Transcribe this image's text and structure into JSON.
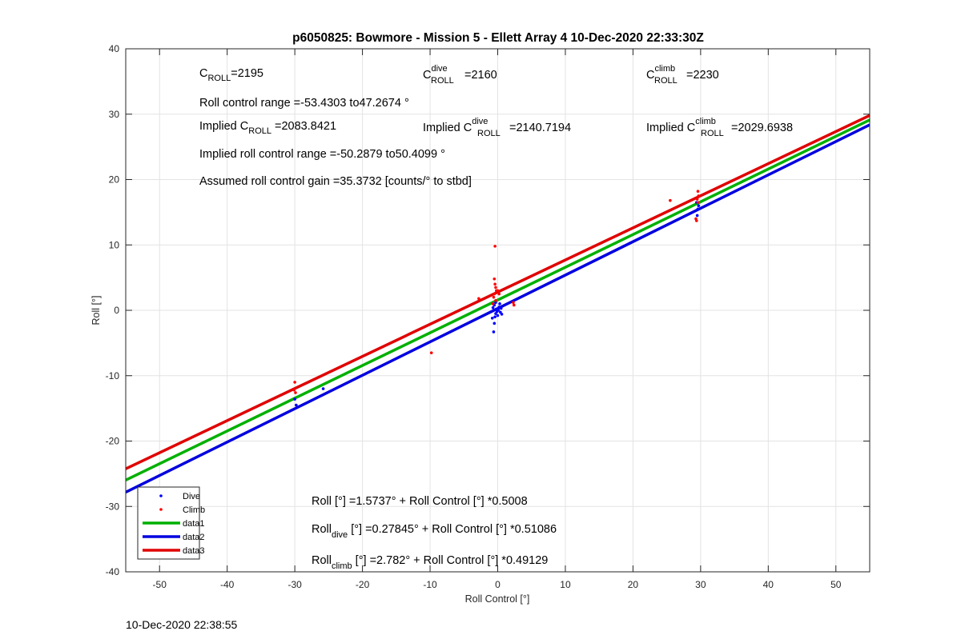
{
  "chart_data": {
    "type": "scatter",
    "title": "p6050825: Bowmore - Mission 5 - Ellett Array 4 10-Dec-2020 22:33:30Z",
    "xlabel": "Roll Control [°]",
    "ylabel": "Roll [°]",
    "xlim": [
      -55,
      55
    ],
    "ylim": [
      -40,
      40
    ],
    "xticks": [
      -50,
      -40,
      -30,
      -20,
      -10,
      0,
      10,
      20,
      30,
      40,
      50
    ],
    "yticks": [
      -40,
      -30,
      -20,
      -10,
      0,
      10,
      20,
      30,
      40
    ],
    "grid": true,
    "legend_placement": "bottom-left",
    "series": [
      {
        "name": "Dive",
        "kind": "points",
        "color": "#0000ff",
        "points": [
          [
            -30,
            -13.6
          ],
          [
            -29.8,
            -14.5
          ],
          [
            -25.8,
            -12.0
          ],
          [
            -0.6,
            -3.3
          ],
          [
            -0.5,
            -2.0
          ],
          [
            -0.4,
            -1.0
          ],
          [
            -0.3,
            -0.5
          ],
          [
            -0.2,
            0.2
          ],
          [
            -0.5,
            0.8
          ],
          [
            -0.3,
            1.2
          ],
          [
            0.0,
            -0.8
          ],
          [
            0.2,
            0.5
          ],
          [
            0.4,
            -0.3
          ],
          [
            0.1,
            0.0
          ],
          [
            -0.7,
            0.4
          ],
          [
            0.3,
            1.0
          ],
          [
            -0.1,
            -0.2
          ],
          [
            0.5,
            0.3
          ],
          [
            0.6,
            -0.6
          ],
          [
            -0.8,
            -1.2
          ],
          [
            29.5,
            14.5
          ],
          [
            29.6,
            15.5
          ],
          [
            29.7,
            16.0
          ],
          [
            29.4,
            16.5
          ]
        ]
      },
      {
        "name": "Climb",
        "kind": "points",
        "color": "#ff0000",
        "points": [
          [
            -30,
            -11.0
          ],
          [
            -30.1,
            -12.2
          ],
          [
            -29.9,
            -12.6
          ],
          [
            -9.8,
            -6.5
          ],
          [
            -0.4,
            9.8
          ],
          [
            -0.5,
            4.8
          ],
          [
            -0.4,
            4.0
          ],
          [
            -0.3,
            3.5
          ],
          [
            -0.2,
            3.0
          ],
          [
            -0.5,
            2.5
          ],
          [
            -0.6,
            2.0
          ],
          [
            -0.3,
            1.5
          ],
          [
            0.0,
            3.0
          ],
          [
            -0.7,
            1.0
          ],
          [
            0.2,
            2.5
          ],
          [
            -2.8,
            1.8
          ],
          [
            2.3,
            1.2
          ],
          [
            2.4,
            0.8
          ],
          [
            25.5,
            16.8
          ],
          [
            29.3,
            14.0
          ],
          [
            29.4,
            13.7
          ],
          [
            29.6,
            16.5
          ],
          [
            29.5,
            17.0
          ],
          [
            29.7,
            17.5
          ],
          [
            29.6,
            18.2
          ]
        ]
      },
      {
        "name": "data1",
        "kind": "line",
        "color": "#00b000",
        "intercept": 1.5737,
        "slope": 0.5008
      },
      {
        "name": "data2",
        "kind": "line",
        "color": "#0000e0",
        "intercept": 0.27845,
        "slope": 0.51086
      },
      {
        "name": "data3",
        "kind": "line",
        "color": "#e00000",
        "intercept": 2.782,
        "slope": 0.49129
      }
    ],
    "annotations": {
      "c_roll": {
        "main": "C",
        "sub": "ROLL",
        "value": "=2195"
      },
      "c_roll_dive": {
        "main": "C",
        "sup": "dive",
        "sub": "ROLL",
        "value": "=2160"
      },
      "c_roll_climb": {
        "main": "C",
        "sup": "climb",
        "sub": "ROLL",
        "value": "=2230"
      },
      "roll_range": "Roll control range =-53.4303 to47.2674 °",
      "implied_c_roll": {
        "prefix": "Implied C",
        "sub": "ROLL",
        "value": "=2083.8421"
      },
      "implied_c_roll_dive": {
        "prefix": "Implied C",
        "sup": "dive",
        "sub": "ROLL",
        "value": "=2140.7194"
      },
      "implied_c_roll_climb": {
        "prefix": "Implied C",
        "sup": "climb",
        "sub": "ROLL",
        "value": "=2029.6938"
      },
      "implied_range": "Implied roll control range =-50.2879 to50.4099 °",
      "gain": "Assumed roll control gain =35.3732 [counts/° to stbd]",
      "fit_all": "Roll [°] =1.5737° + Roll Control [°] *0.5008",
      "fit_dive": {
        "main": "Roll",
        "sub": "dive",
        "rest": " [°] =0.27845° + Roll Control [°] *0.51086"
      },
      "fit_climb": {
        "main": "Roll",
        "sub": "climb",
        "rest": " [°] =2.782° + Roll Control [°] *0.49129"
      }
    }
  },
  "timestamp": "10-Dec-2020 22:38:55"
}
